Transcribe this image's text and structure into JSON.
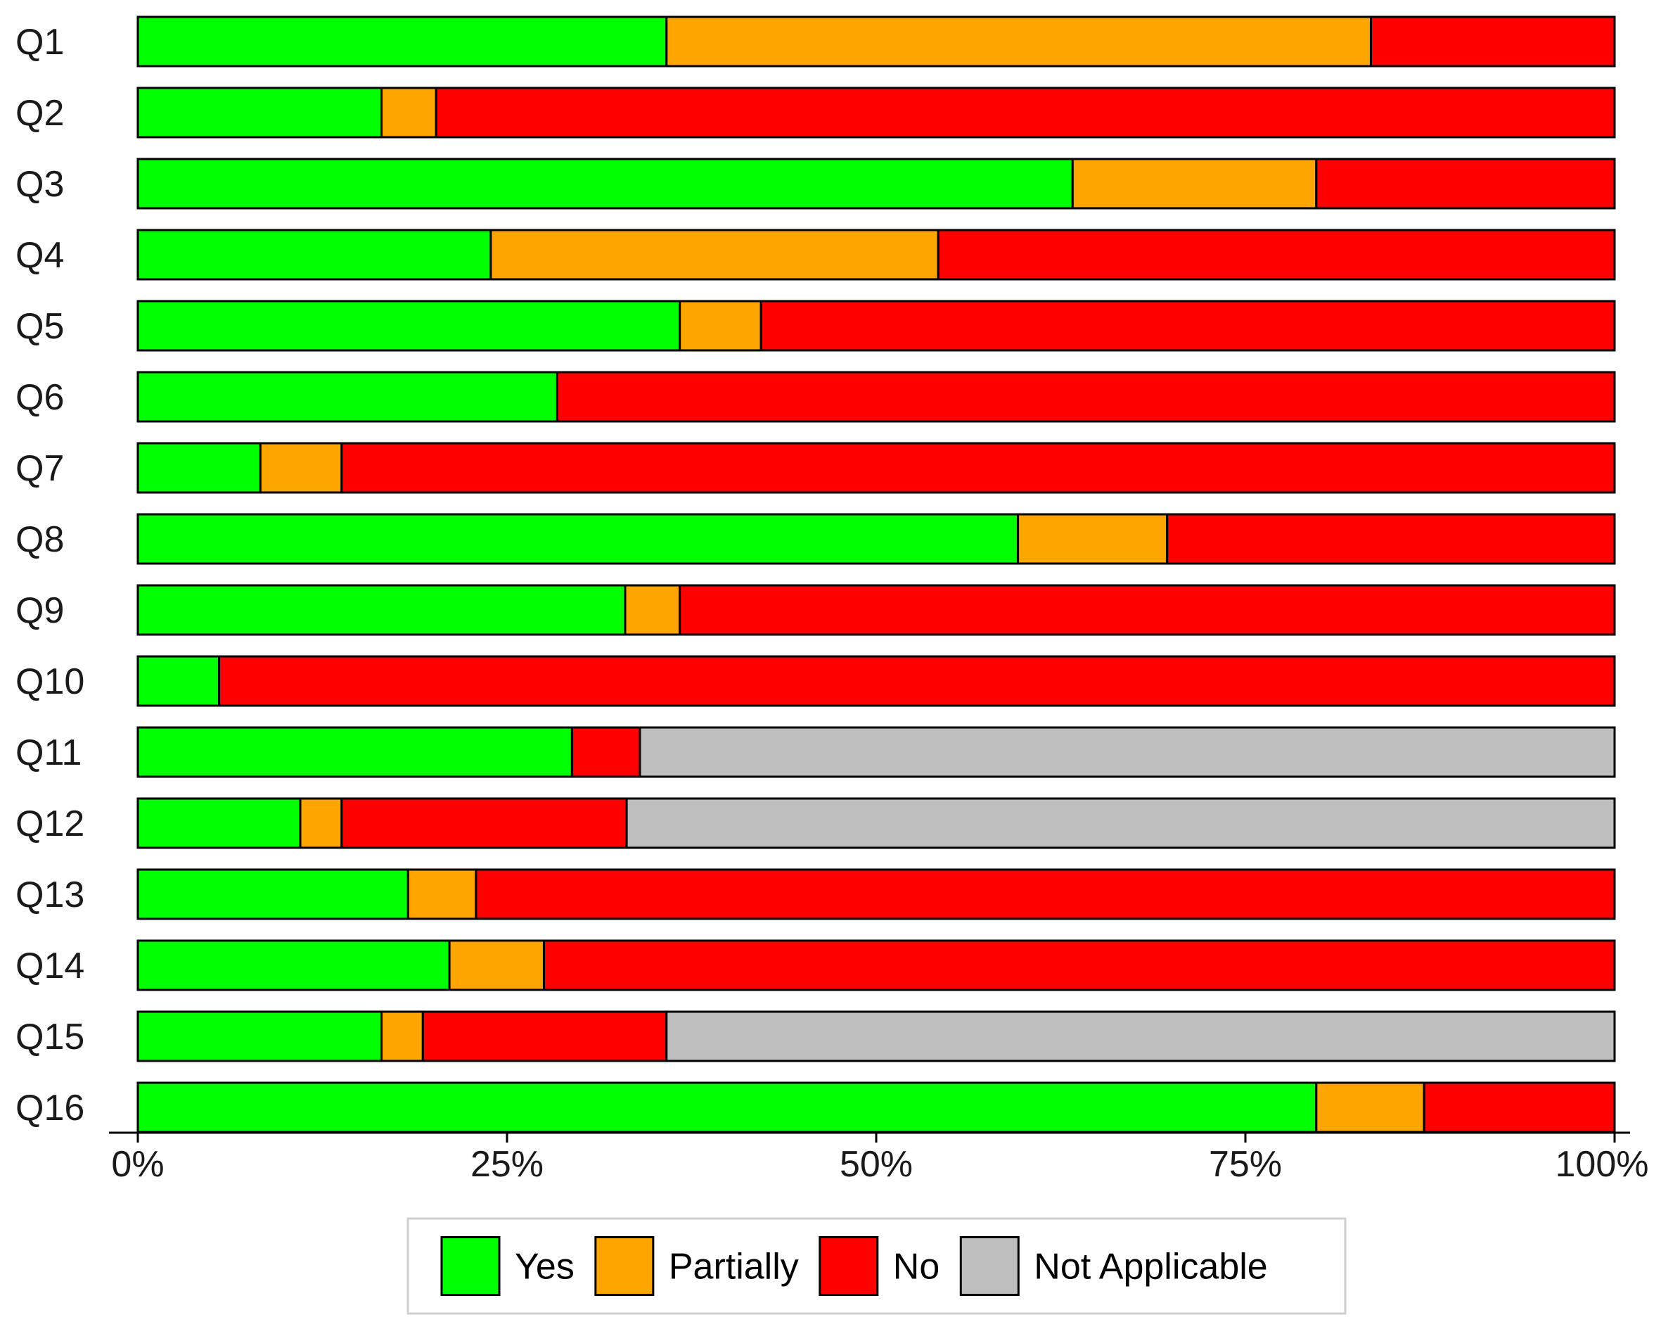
{
  "chart_data": {
    "type": "bar",
    "orientation": "horizontal",
    "stacked": true,
    "categories": [
      "Q1",
      "Q2",
      "Q3",
      "Q4",
      "Q5",
      "Q6",
      "Q7",
      "Q8",
      "Q9",
      "Q10",
      "Q11",
      "Q12",
      "Q13",
      "Q14",
      "Q15",
      "Q16"
    ],
    "series": [
      {
        "name": "Yes",
        "color": "#00ff00",
        "values": [
          35.8,
          16.5,
          63.3,
          23.9,
          36.7,
          28.4,
          8.3,
          59.6,
          33.0,
          5.5,
          29.4,
          11.0,
          18.3,
          21.1,
          16.5,
          79.8
        ]
      },
      {
        "name": "Partially",
        "color": "#ffa500",
        "values": [
          47.7,
          3.7,
          16.5,
          30.3,
          5.5,
          0,
          5.5,
          10.1,
          3.7,
          0,
          0,
          2.8,
          4.6,
          6.4,
          2.8,
          7.3
        ]
      },
      {
        "name": "No",
        "color": "#ff0000",
        "values": [
          16.5,
          79.8,
          20.2,
          45.8,
          57.8,
          71.6,
          86.2,
          30.3,
          63.3,
          94.5,
          4.6,
          19.3,
          77.1,
          72.5,
          16.5,
          12.9
        ]
      },
      {
        "name": "Not Applicable",
        "color": "#bebebe",
        "values": [
          0,
          0,
          0,
          0,
          0,
          0,
          0,
          0,
          0,
          0,
          66.0,
          66.9,
          0,
          0,
          64.2,
          0
        ]
      }
    ],
    "x_ticks": [
      "0%",
      "25%",
      "50%",
      "75%",
      "100%"
    ],
    "xlim": [
      0,
      100
    ],
    "legend_position": "bottom",
    "grid": false
  }
}
